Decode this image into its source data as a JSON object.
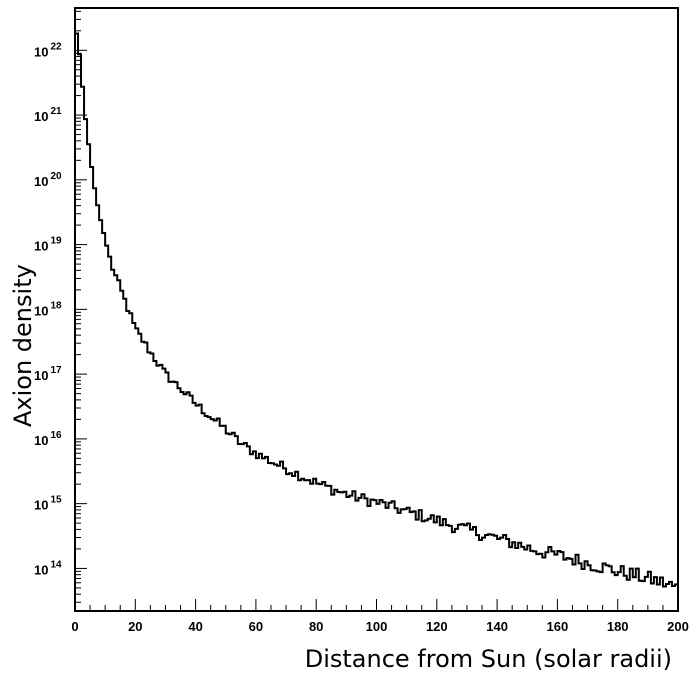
{
  "chart_data": {
    "type": "line",
    "style": "step-histogram",
    "xlabel": "Distance from Sun (solar radii)",
    "ylabel": "Axion density",
    "xlim": [
      0,
      200
    ],
    "ylim": [
      22000000000000.0,
      4.5e+22
    ],
    "yscale": "log",
    "x_ticks": [
      0,
      20,
      40,
      60,
      80,
      100,
      120,
      140,
      160,
      180,
      200
    ],
    "y_ticks": [
      {
        "base": "10",
        "exp": "14",
        "value": 100000000000000.0
      },
      {
        "base": "10",
        "exp": "15",
        "value": 1000000000000000.0
      },
      {
        "base": "10",
        "exp": "16",
        "value": 1e+16
      },
      {
        "base": "10",
        "exp": "17",
        "value": 1e+17
      },
      {
        "base": "10",
        "exp": "18",
        "value": 1e+18
      },
      {
        "base": "10",
        "exp": "19",
        "value": 1e+19
      },
      {
        "base": "10",
        "exp": "20",
        "value": 1e+20
      },
      {
        "base": "10",
        "exp": "21",
        "value": 1e+21
      },
      {
        "base": "10",
        "exp": "22",
        "value": 1e+22
      }
    ],
    "grid": false,
    "line_color": "#000000",
    "series": [
      {
        "x": [
          0,
          1,
          2,
          3,
          4,
          5,
          6,
          8,
          10,
          12,
          14,
          16,
          18,
          20,
          25,
          30,
          35,
          40,
          45,
          50,
          55,
          60,
          65,
          70,
          75,
          80,
          85,
          90,
          95,
          100,
          105,
          110,
          115,
          120,
          125,
          130,
          135,
          140,
          145,
          150,
          155,
          160,
          165,
          170,
          175,
          180,
          185,
          190,
          195,
          200
        ],
        "y": [
          2.2e+22,
          1.5e+22,
          5e+21,
          1.5e+21,
          5e+20,
          2.5e+20,
          1e+20,
          3e+19,
          1.2e+19,
          5e+18,
          2.8e+18,
          1.6e+18,
          9e+17,
          5e+17,
          2.2e+17,
          1e+17,
          6e+16,
          3.5e+16,
          2.2e+16,
          1.4e+16,
          8500000000000000.0,
          6000000000000000.0,
          4500000000000000.0,
          3500000000000000.0,
          2700000000000000.0,
          2100000000000000.0,
          1700000000000000.0,
          1400000000000000.0,
          1200000000000000.0,
          1050000000000000.0,
          900000000000000.0,
          750000000000000.0,
          650000000000000.0,
          550000000000000.0,
          460000000000000.0,
          400000000000000.0,
          340000000000000.0,
          290000000000000.0,
          250000000000000.0,
          210000000000000.0,
          180000000000000.0,
          160000000000000.0,
          140000000000000.0,
          120000000000000.0,
          105000000000000.0,
          90000000000000.0,
          80000000000000.0,
          70000000000000.0,
          60000000000000.0,
          50000000000000.0
        ]
      }
    ]
  }
}
